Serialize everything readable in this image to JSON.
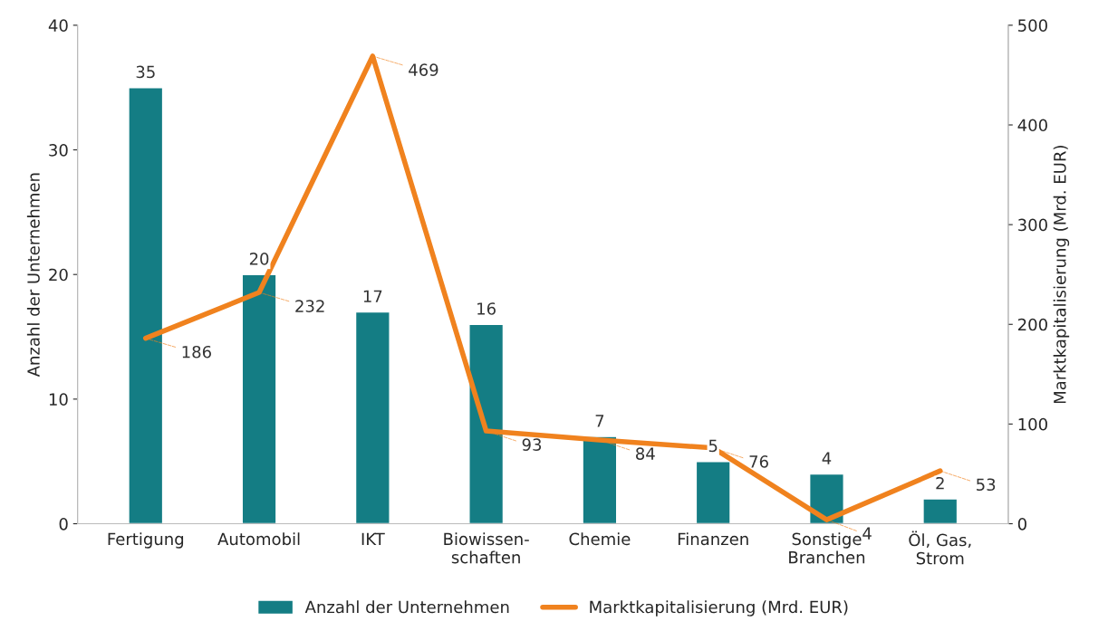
{
  "chart_data": {
    "type": "bar",
    "categories": [
      "Fertigung",
      "Automobil",
      "IKT",
      "Biowissen-\nschaften",
      "Chemie",
      "Finanzen",
      "Sonstige\nBranchen",
      "Öl, Gas,\nStrom"
    ],
    "ylabel": "Anzahl der Unternehmen",
    "y2label": "Marktkapitalisierung (Mrd. EUR)",
    "series": [
      {
        "name": "Anzahl der Unternehmen",
        "color": "#147d84",
        "values": [
          35,
          20,
          17,
          16,
          7,
          5,
          4,
          2
        ]
      },
      {
        "name": "Marktkapitalisierung (Mrd. EUR)",
        "type": "line",
        "axis": "y2",
        "color": "#f0821e",
        "values": [
          186,
          232,
          469,
          93,
          84,
          76,
          4,
          53
        ]
      }
    ],
    "ylim": [
      0,
      40
    ],
    "yticks": [
      0,
      10,
      20,
      30,
      40
    ],
    "y2lim": [
      0,
      500
    ],
    "y2ticks": [
      0,
      100,
      200,
      300,
      400,
      500
    ],
    "data_labels": true,
    "grid": false,
    "legend": "bottom",
    "marker": "none",
    "line_style": "solid"
  }
}
